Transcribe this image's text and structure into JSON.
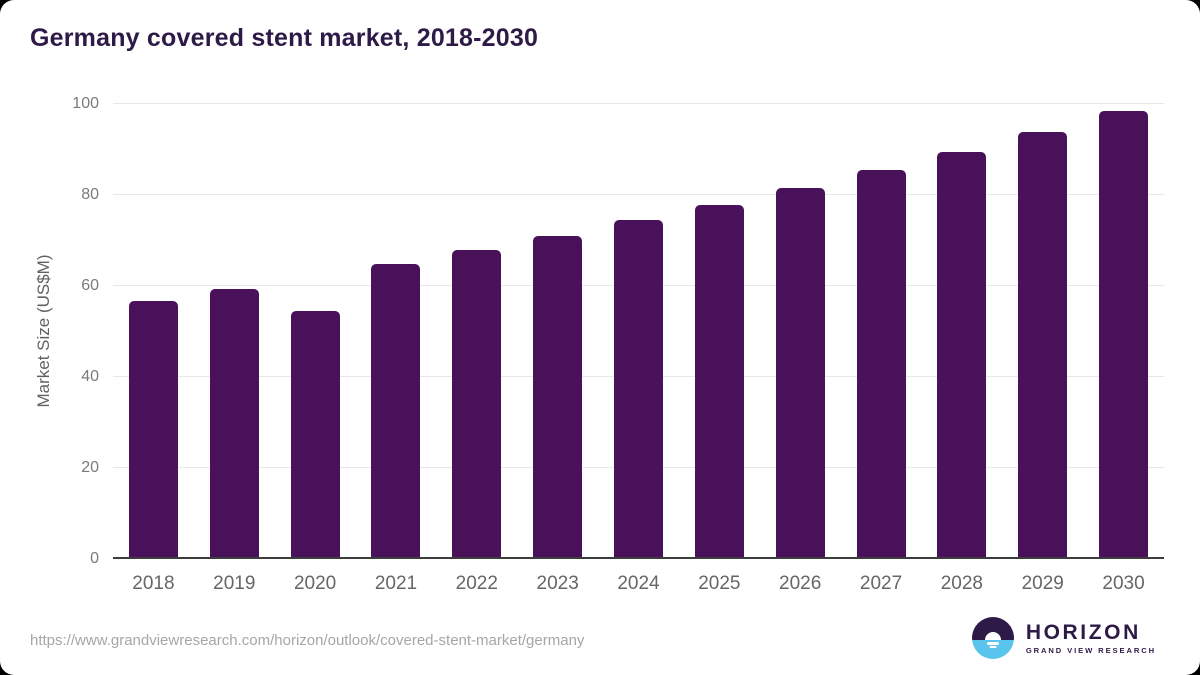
{
  "chart_data": {
    "type": "bar",
    "title": "Germany covered stent market, 2018-2030",
    "xlabel": "",
    "ylabel": "Market Size (US$M)",
    "categories": [
      "2018",
      "2019",
      "2020",
      "2021",
      "2022",
      "2023",
      "2024",
      "2025",
      "2026",
      "2027",
      "2028",
      "2029",
      "2030"
    ],
    "values": [
      56.6,
      59.4,
      54.6,
      64.8,
      68.0,
      71.0,
      74.4,
      77.8,
      81.5,
      85.4,
      89.4,
      93.8,
      98.5
    ],
    "ylim": [
      0,
      100
    ],
    "yticks": [
      0,
      20,
      40,
      60,
      80,
      100
    ],
    "grid": "horizontal",
    "legend_position": "none",
    "bar_color": "#48115a"
  },
  "colors": {
    "title_text": "#2d1a47",
    "grid_line": "#e8e8e8",
    "axis_line": "#3d3d3d",
    "y_tick_text": "#7a7a7a",
    "x_tick_text": "#666666",
    "url_text": "#a6a6a6",
    "logo_dark": "#2e1a47",
    "logo_blue": "#59c5ec"
  },
  "footer": {
    "source_url": "https://www.grandviewresearch.com/horizon/outlook/covered-stent-market/germany",
    "logo": {
      "brand": "HORIZON",
      "subtitle": "GRAND VIEW RESEARCH"
    }
  }
}
